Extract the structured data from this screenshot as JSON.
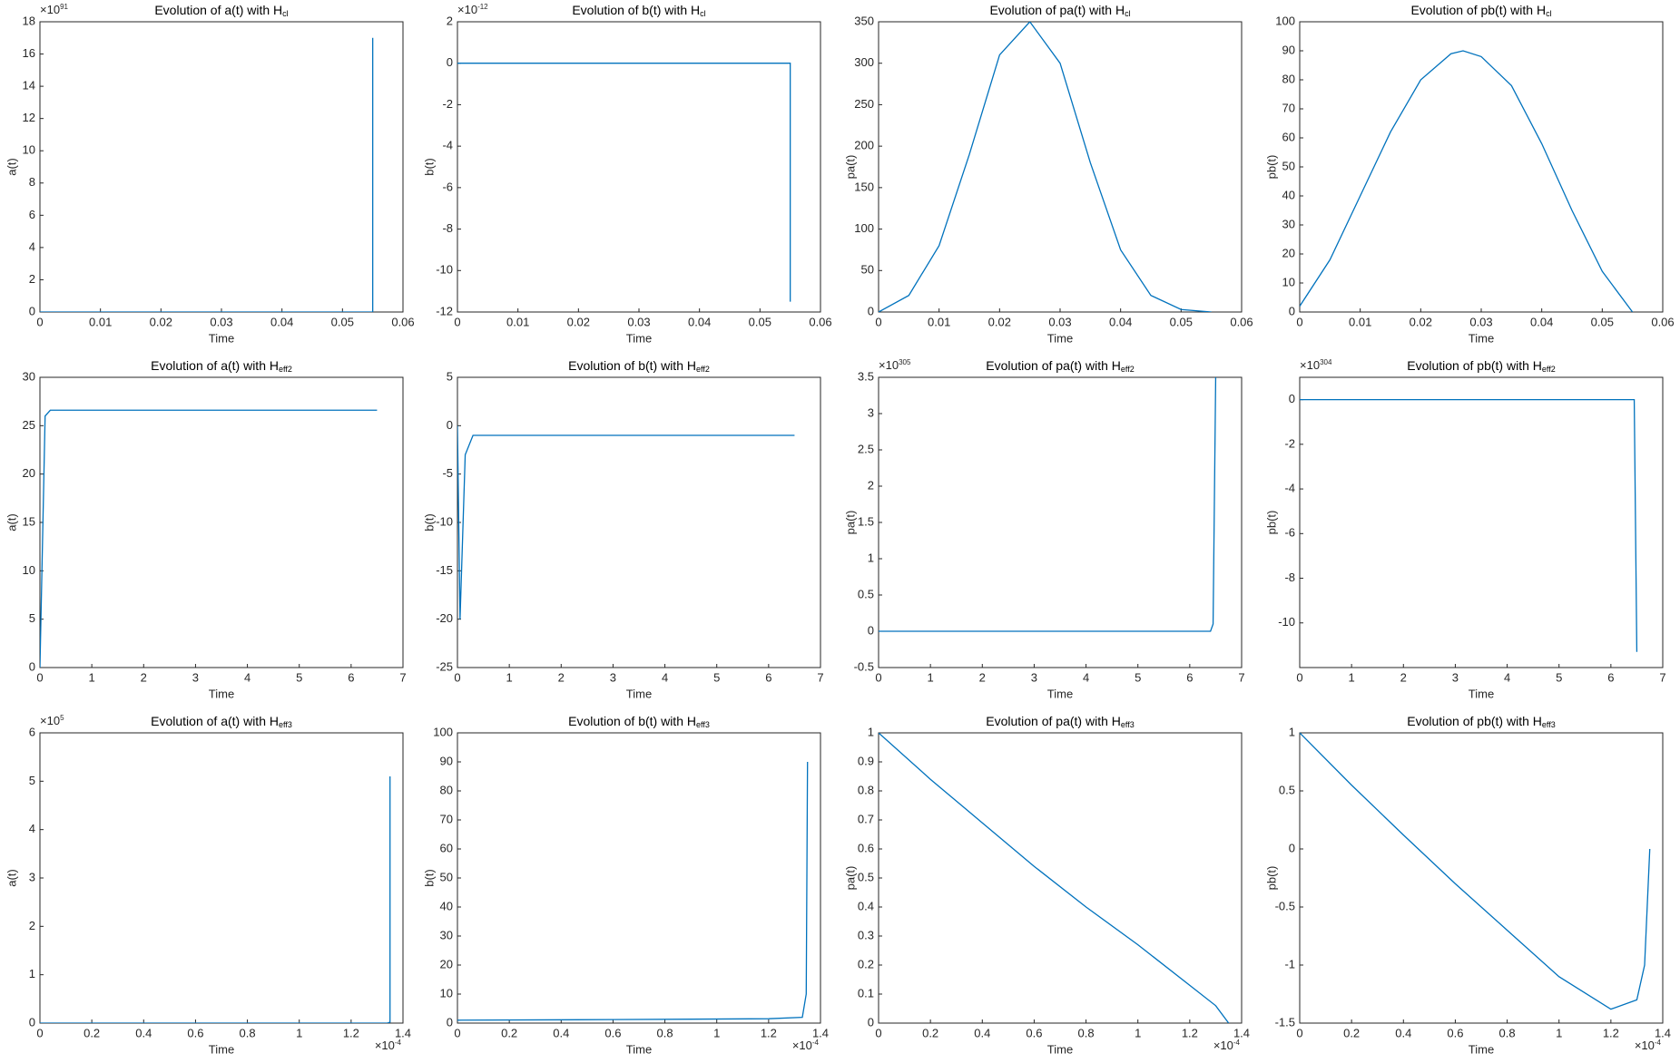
{
  "chart_data": [
    {
      "type": "line",
      "title": "Evolution of a(t) with H",
      "title_sub": "cl",
      "xlabel": "Time",
      "ylabel": "a(t)",
      "ymult": "×10",
      "ymult_power": "91",
      "color": "#0072bd",
      "x": [
        0,
        0.0549,
        0.055,
        0.055
      ],
      "values": [
        0,
        0,
        0,
        17
      ],
      "xlim": [
        0,
        0.06
      ],
      "xticks": [
        0,
        0.01,
        0.02,
        0.03,
        0.04,
        0.05,
        0.06
      ],
      "ylim": [
        0,
        18
      ],
      "yticks": [
        0,
        2,
        4,
        6,
        8,
        10,
        12,
        14,
        16,
        18
      ]
    },
    {
      "type": "line",
      "title": "Evolution of b(t) with H",
      "title_sub": "cl",
      "xlabel": "Time",
      "ylabel": "b(t)",
      "ymult": "×10",
      "ymult_power": "-12",
      "color": "#0072bd",
      "x": [
        0,
        0.055,
        0.055
      ],
      "values": [
        0,
        0,
        -11.5
      ],
      "xlim": [
        0,
        0.06
      ],
      "xticks": [
        0,
        0.01,
        0.02,
        0.03,
        0.04,
        0.05,
        0.06
      ],
      "ylim": [
        -12,
        2
      ],
      "yticks": [
        -12,
        -10,
        -8,
        -6,
        -4,
        -2,
        0,
        2
      ]
    },
    {
      "type": "line",
      "title": "Evolution of pa(t) with H",
      "title_sub": "cl",
      "xlabel": "Time",
      "ylabel": "pa(t)",
      "color": "#0072bd",
      "x": [
        0,
        0.005,
        0.01,
        0.015,
        0.02,
        0.025,
        0.03,
        0.035,
        0.04,
        0.045,
        0.05,
        0.055
      ],
      "values": [
        0,
        20,
        80,
        190,
        310,
        350,
        300,
        180,
        75,
        20,
        3,
        0
      ],
      "xlim": [
        0,
        0.06
      ],
      "xticks": [
        0,
        0.01,
        0.02,
        0.03,
        0.04,
        0.05,
        0.06
      ],
      "ylim": [
        0,
        350
      ],
      "yticks": [
        0,
        50,
        100,
        150,
        200,
        250,
        300,
        350
      ]
    },
    {
      "type": "line",
      "title": "Evolution of pb(t) with H",
      "title_sub": "cl",
      "xlabel": "Time",
      "ylabel": "pb(t)",
      "color": "#0072bd",
      "x": [
        0,
        0.005,
        0.01,
        0.015,
        0.02,
        0.025,
        0.027,
        0.03,
        0.035,
        0.04,
        0.045,
        0.05,
        0.055
      ],
      "values": [
        2,
        18,
        40,
        62,
        80,
        89,
        90,
        88,
        78,
        58,
        35,
        14,
        0
      ],
      "xlim": [
        0,
        0.06
      ],
      "xticks": [
        0,
        0.01,
        0.02,
        0.03,
        0.04,
        0.05,
        0.06
      ],
      "ylim": [
        0,
        100
      ],
      "yticks": [
        0,
        10,
        20,
        30,
        40,
        50,
        60,
        70,
        80,
        90,
        100
      ]
    },
    {
      "type": "line",
      "title": "Evolution of a(t) with H",
      "title_sub": "eff2",
      "xlabel": "Time",
      "ylabel": "a(t)",
      "color": "#0072bd",
      "x": [
        0,
        0.1,
        0.2,
        6.5
      ],
      "values": [
        0,
        26,
        26.6,
        26.6
      ],
      "xlim": [
        0,
        7
      ],
      "xticks": [
        0,
        1,
        2,
        3,
        4,
        5,
        6,
        7
      ],
      "ylim": [
        0,
        30
      ],
      "yticks": [
        0,
        5,
        10,
        15,
        20,
        25,
        30
      ]
    },
    {
      "type": "line",
      "title": "Evolution of b(t) with H",
      "title_sub": "eff2",
      "xlabel": "Time",
      "ylabel": "b(t)",
      "color": "#0072bd",
      "x": [
        0,
        0.05,
        0.15,
        0.3,
        6.5
      ],
      "values": [
        0,
        -20,
        -3,
        -1,
        -1
      ],
      "xlim": [
        0,
        7
      ],
      "xticks": [
        0,
        1,
        2,
        3,
        4,
        5,
        6,
        7
      ],
      "ylim": [
        -25,
        5
      ],
      "yticks": [
        -25,
        -20,
        -15,
        -10,
        -5,
        0,
        5
      ]
    },
    {
      "type": "line",
      "title": "Evolution of pa(t) with H",
      "title_sub": "eff2",
      "xlabel": "Time",
      "ylabel": "pa(t)",
      "ymult": "×10",
      "ymult_power": "305",
      "color": "#0072bd",
      "x": [
        0,
        6.4,
        6.45,
        6.5
      ],
      "values": [
        0,
        0,
        0.1,
        3.5
      ],
      "xlim": [
        0,
        7
      ],
      "xticks": [
        0,
        1,
        2,
        3,
        4,
        5,
        6,
        7
      ],
      "ylim": [
        -0.5,
        3.5
      ],
      "yticks": [
        -0.5,
        0,
        0.5,
        1,
        1.5,
        2,
        2.5,
        3,
        3.5
      ]
    },
    {
      "type": "line",
      "title": "Evolution of pb(t) with H",
      "title_sub": "eff2",
      "xlabel": "Time",
      "ylabel": "pb(t)",
      "ymult": "×10",
      "ymult_power": "304",
      "color": "#0072bd",
      "x": [
        0,
        6.45,
        6.5
      ],
      "values": [
        0,
        0,
        -11.3
      ],
      "xlim": [
        0,
        7
      ],
      "xticks": [
        0,
        1,
        2,
        3,
        4,
        5,
        6,
        7
      ],
      "ylim": [
        -12,
        1
      ],
      "yticks": [
        -10,
        -8,
        -6,
        -4,
        -2,
        0
      ]
    },
    {
      "type": "line",
      "title": "Evolution of a(t) with H",
      "title_sub": "eff3",
      "xlabel": "Time",
      "ylabel": "a(t)",
      "ymult": "×10",
      "ymult_power": "5",
      "xmult": "×10",
      "xmult_power": "-4",
      "color": "#0072bd",
      "x": [
        0,
        1.34,
        1.35,
        1.35
      ],
      "values": [
        0,
        0,
        0.02,
        5.1
      ],
      "xlim": [
        0,
        1.4
      ],
      "xticks": [
        0,
        0.2,
        0.4,
        0.6,
        0.8,
        1,
        1.2,
        1.4
      ],
      "ylim": [
        0,
        6
      ],
      "yticks": [
        0,
        1,
        2,
        3,
        4,
        5,
        6
      ]
    },
    {
      "type": "line",
      "title": "Evolution of b(t) with H",
      "title_sub": "eff3",
      "xlabel": "Time",
      "ylabel": "b(t)",
      "xmult": "×10",
      "xmult_power": "-4",
      "color": "#0072bd",
      "x": [
        0,
        0.6,
        1.2,
        1.33,
        1.345,
        1.35
      ],
      "values": [
        1,
        1.2,
        1.5,
        2,
        10,
        90
      ],
      "xlim": [
        0,
        1.4
      ],
      "xticks": [
        0,
        0.2,
        0.4,
        0.6,
        0.8,
        1,
        1.2,
        1.4
      ],
      "ylim": [
        0,
        100
      ],
      "yticks": [
        0,
        10,
        20,
        30,
        40,
        50,
        60,
        70,
        80,
        90,
        100
      ]
    },
    {
      "type": "line",
      "title": "Evolution of pa(t) with H",
      "title_sub": "eff3",
      "xlabel": "Time",
      "ylabel": "pa(t)",
      "xmult": "×10",
      "xmult_power": "-4",
      "color": "#0072bd",
      "x": [
        0,
        0.2,
        0.4,
        0.6,
        0.8,
        1,
        1.2,
        1.3,
        1.35
      ],
      "values": [
        1,
        0.84,
        0.69,
        0.54,
        0.4,
        0.27,
        0.13,
        0.06,
        0
      ],
      "xlim": [
        0,
        1.4
      ],
      "xticks": [
        0,
        0.2,
        0.4,
        0.6,
        0.8,
        1,
        1.2,
        1.4
      ],
      "ylim": [
        0,
        1
      ],
      "yticks": [
        0,
        0.1,
        0.2,
        0.3,
        0.4,
        0.5,
        0.6,
        0.7,
        0.8,
        0.9,
        1
      ]
    },
    {
      "type": "line",
      "title": "Evolution of pb(t) with H",
      "title_sub": "eff3",
      "xlabel": "Time",
      "ylabel": "pb(t)",
      "xmult": "×10",
      "xmult_power": "-4",
      "color": "#0072bd",
      "x": [
        0,
        0.2,
        0.4,
        0.6,
        0.8,
        1,
        1.2,
        1.3,
        1.33,
        1.35
      ],
      "values": [
        1,
        0.55,
        0.12,
        -0.3,
        -0.7,
        -1.1,
        -1.38,
        -1.3,
        -1,
        0
      ],
      "xlim": [
        0,
        1.4
      ],
      "xticks": [
        0,
        0.2,
        0.4,
        0.6,
        0.8,
        1,
        1.2,
        1.4
      ],
      "ylim": [
        -1.5,
        1
      ],
      "yticks": [
        -1.5,
        -1,
        -0.5,
        0,
        0.5,
        1
      ]
    }
  ]
}
